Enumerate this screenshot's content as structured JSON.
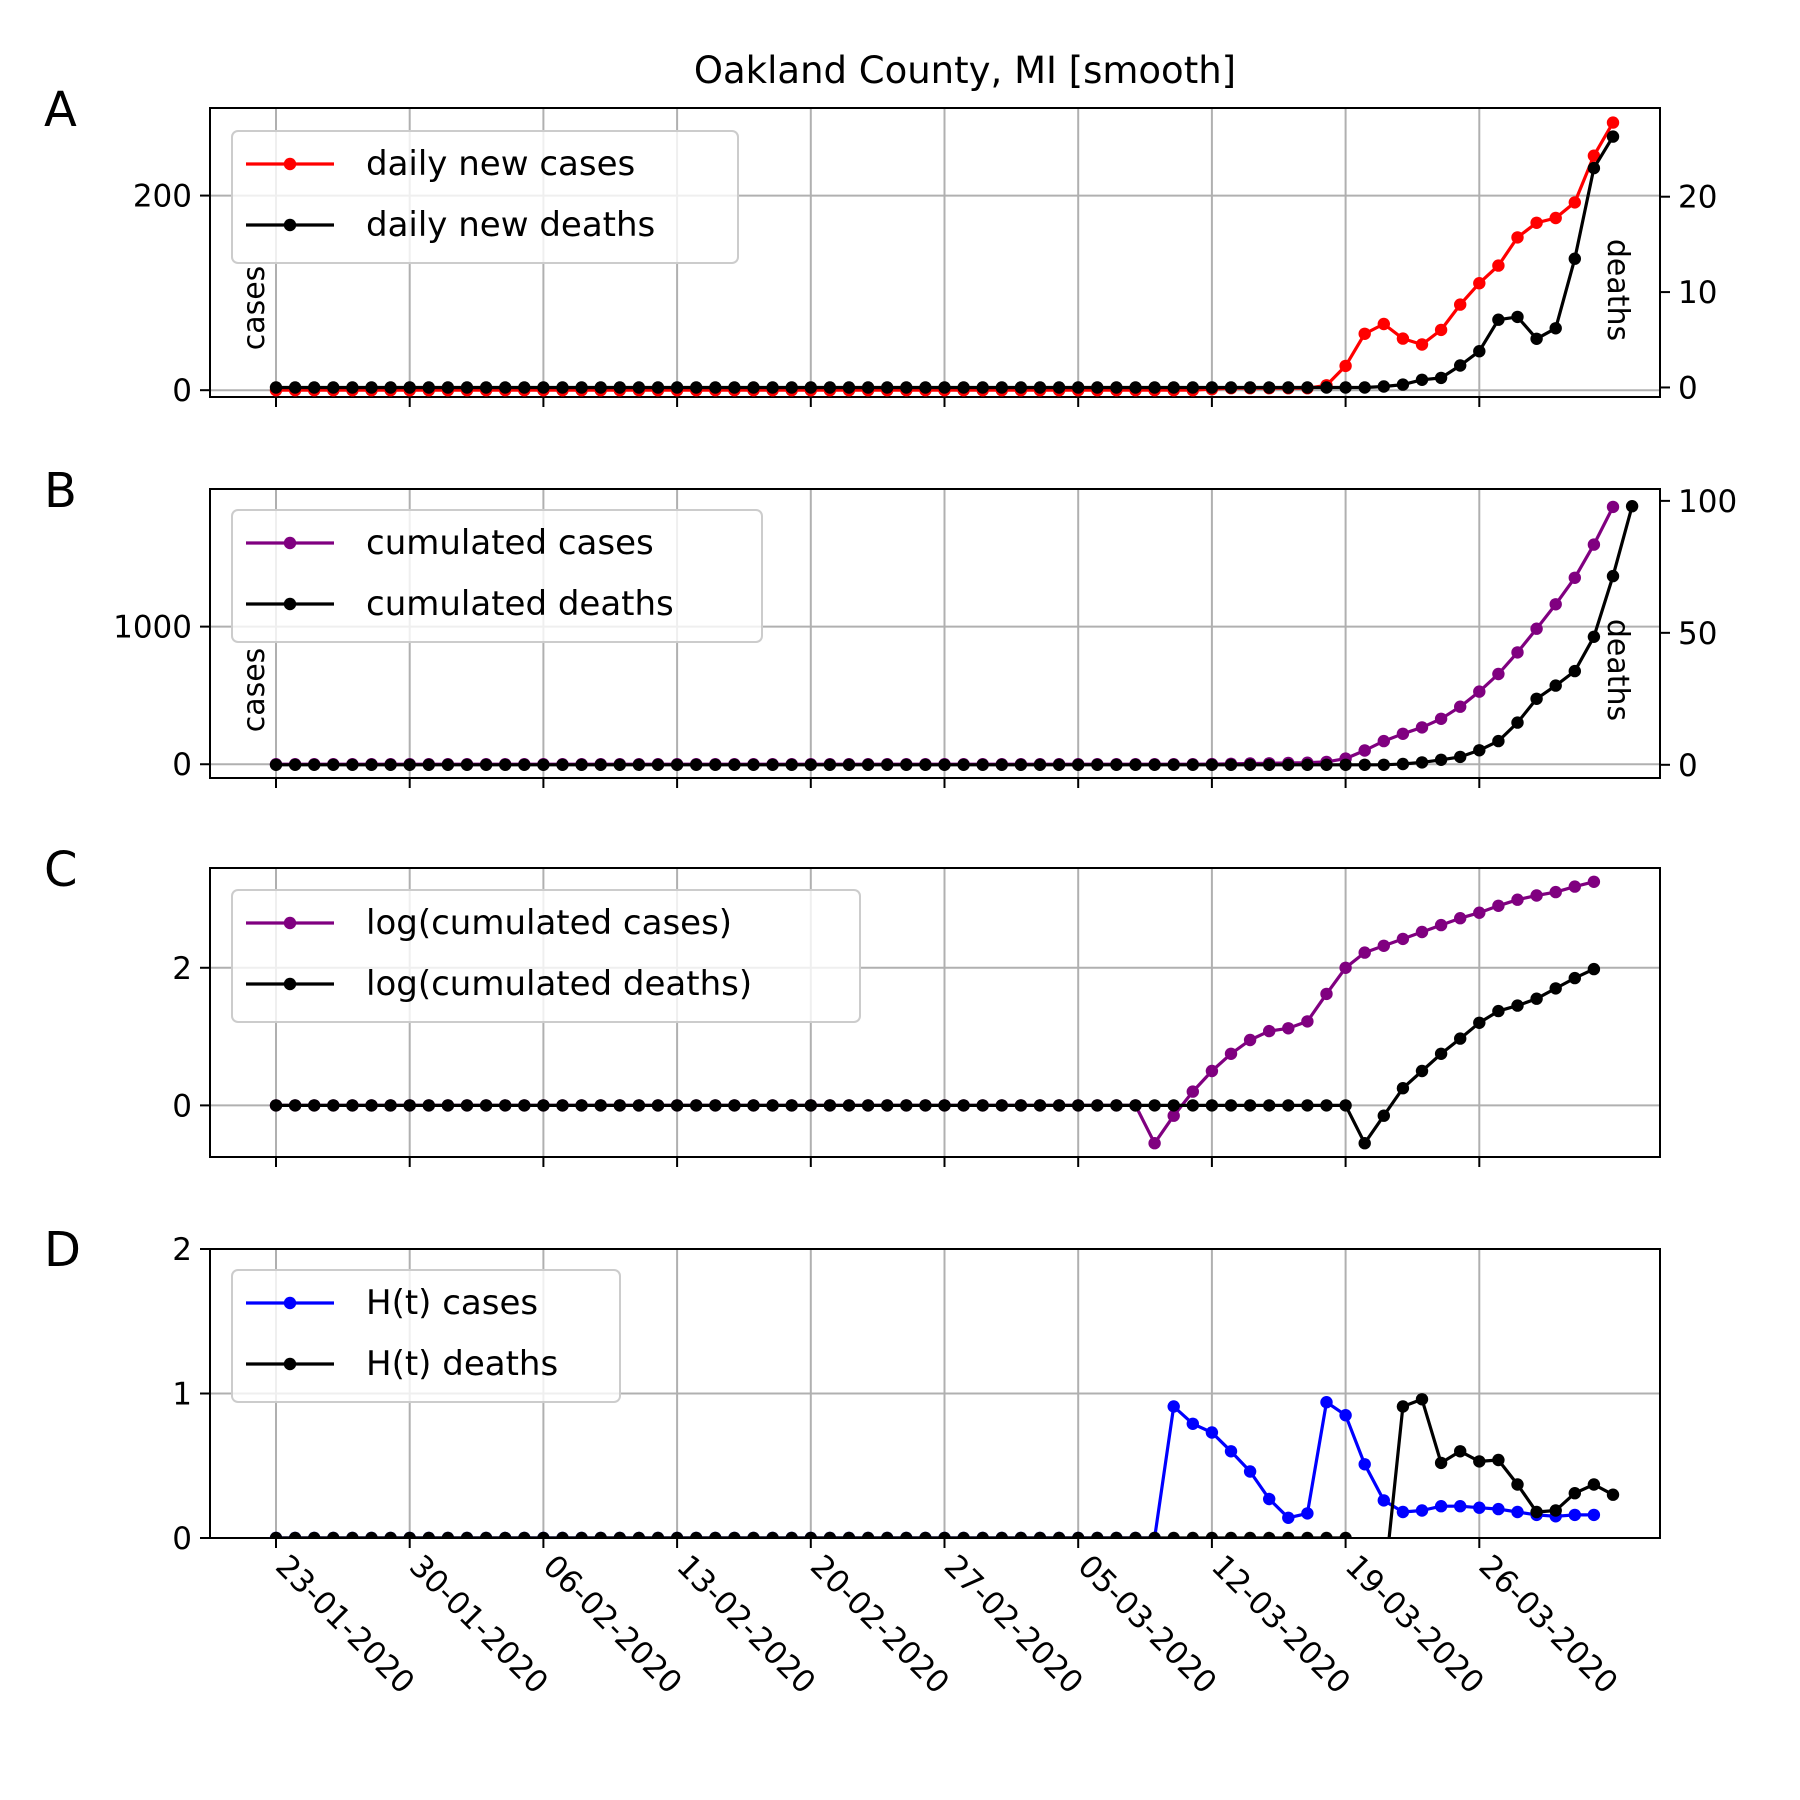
{
  "title": "Oakland County, MI [smooth]",
  "x_ticks": [
    "23-01-2020",
    "30-01-2020",
    "06-02-2020",
    "13-02-2020",
    "20-02-2020",
    "27-02-2020",
    "05-03-2020",
    "12-03-2020",
    "19-03-2020",
    "26-03-2020"
  ],
  "colors": {
    "cases": "#ff0000",
    "deaths": "#000000",
    "cumulated": "#800080",
    "ht_cases": "#0000ff"
  },
  "chart_data": [
    {
      "panel": "A",
      "type": "line",
      "x_start": "23-01-2020",
      "x_end": "31-03-2020",
      "ylabel": "cases",
      "ylabel_right": "deaths",
      "ylim": [
        -7,
        290
      ],
      "ylim_right": [
        -1.0,
        29.3
      ],
      "yticks": [
        0,
        200
      ],
      "yticks_right": [
        0,
        10,
        20
      ],
      "grid": true,
      "legend_position": "top-left",
      "series": [
        {
          "name": "daily new cases",
          "axis": "left",
          "color": "#ff0000",
          "values": [
            0,
            0,
            0,
            0,
            0,
            0,
            0,
            0,
            0,
            0,
            0,
            0,
            0,
            0,
            0,
            0,
            0,
            0,
            0,
            0,
            0,
            0,
            0,
            0,
            0,
            0,
            0,
            0,
            0,
            0,
            0,
            0,
            0,
            0,
            0,
            0,
            0,
            0,
            0,
            0,
            0,
            0,
            0,
            0,
            0,
            0,
            0,
            0,
            0,
            1,
            2,
            2,
            2,
            2,
            2,
            5,
            25,
            58,
            68,
            53,
            47,
            62,
            88,
            110,
            128,
            157,
            172,
            177,
            193,
            241,
            275
          ]
        },
        {
          "name": "daily new deaths",
          "axis": "right",
          "color": "#000000",
          "values": [
            0,
            0,
            0,
            0,
            0,
            0,
            0,
            0,
            0,
            0,
            0,
            0,
            0,
            0,
            0,
            0,
            0,
            0,
            0,
            0,
            0,
            0,
            0,
            0,
            0,
            0,
            0,
            0,
            0,
            0,
            0,
            0,
            0,
            0,
            0,
            0,
            0,
            0,
            0,
            0,
            0,
            0,
            0,
            0,
            0,
            0,
            0,
            0,
            0,
            0,
            0,
            0,
            0,
            0,
            0,
            0,
            0,
            0,
            0.1,
            0.3,
            0.8,
            1.0,
            2.3,
            3.8,
            7.1,
            7.4,
            5.1,
            6.2,
            13.5,
            23.0,
            26.3
          ]
        }
      ]
    },
    {
      "panel": "B",
      "type": "line",
      "x_start": "23-01-2020",
      "x_end": "31-03-2020",
      "ylabel": "cases",
      "ylabel_right": "deaths",
      "ylim": [
        -100,
        2000
      ],
      "ylim_right": [
        -5,
        104.5
      ],
      "yticks": [
        0,
        1000
      ],
      "yticks_right": [
        0,
        50,
        100
      ],
      "grid": true,
      "legend_position": "top-left",
      "series": [
        {
          "name": "cumulated cases",
          "axis": "left",
          "color": "#800080",
          "values": [
            0,
            0,
            0,
            0,
            0,
            0,
            0,
            0,
            0,
            0,
            0,
            0,
            0,
            0,
            0,
            0,
            0,
            0,
            0,
            0,
            0,
            0,
            0,
            0,
            0,
            0,
            0,
            0,
            0,
            0,
            0,
            0,
            0,
            0,
            0,
            0,
            0,
            0,
            0,
            0,
            0,
            0,
            0,
            0,
            0,
            0,
            0,
            0,
            0,
            1,
            3,
            5,
            7,
            9,
            11,
            17,
            41,
            100,
            168,
            221,
            268,
            330,
            418,
            528,
            656,
            813,
            985,
            1162,
            1355,
            1596,
            1870
          ]
        },
        {
          "name": "cumulated deaths",
          "axis": "right",
          "color": "#000000",
          "values": [
            0,
            0,
            0,
            0,
            0,
            0,
            0,
            0,
            0,
            0,
            0,
            0,
            0,
            0,
            0,
            0,
            0,
            0,
            0,
            0,
            0,
            0,
            0,
            0,
            0,
            0,
            0,
            0,
            0,
            0,
            0,
            0,
            0,
            0,
            0,
            0,
            0,
            0,
            0,
            0,
            0,
            0,
            0,
            0,
            0,
            0,
            0,
            0,
            0,
            0,
            0,
            0,
            0,
            0,
            0,
            0,
            0,
            0,
            0,
            0.3,
            0.9,
            1.9,
            3,
            5.5,
            9,
            16,
            25,
            30,
            35.5,
            48.5,
            71.5,
            98
          ]
        }
      ]
    },
    {
      "panel": "C",
      "type": "line",
      "x_start": "23-01-2020",
      "x_end": "31-03-2020",
      "ylim": [
        -0.75,
        3.45
      ],
      "yticks": [
        0,
        2
      ],
      "grid": true,
      "legend_position": "top-left",
      "series": [
        {
          "name": "log(cumulated cases)",
          "color": "#800080",
          "values": [
            0,
            0,
            0,
            0,
            0,
            0,
            0,
            0,
            0,
            0,
            0,
            0,
            0,
            0,
            0,
            0,
            0,
            0,
            0,
            0,
            0,
            0,
            0,
            0,
            0,
            0,
            0,
            0,
            0,
            0,
            0,
            0,
            0,
            0,
            0,
            0,
            0,
            0,
            0,
            0,
            0,
            0,
            0,
            0,
            0,
            0,
            -0.55,
            -0.15,
            0.2,
            0.5,
            0.75,
            0.95,
            1.08,
            1.12,
            1.22,
            1.62,
            2.0,
            2.22,
            2.32,
            2.42,
            2.52,
            2.62,
            2.72,
            2.8,
            2.9,
            2.99,
            3.05,
            3.1,
            3.18,
            3.25
          ]
        },
        {
          "name": "log(cumulated deaths)",
          "color": "#000000",
          "values": [
            0,
            0,
            0,
            0,
            0,
            0,
            0,
            0,
            0,
            0,
            0,
            0,
            0,
            0,
            0,
            0,
            0,
            0,
            0,
            0,
            0,
            0,
            0,
            0,
            0,
            0,
            0,
            0,
            0,
            0,
            0,
            0,
            0,
            0,
            0,
            0,
            0,
            0,
            0,
            0,
            0,
            0,
            0,
            0,
            0,
            0,
            0,
            0,
            0,
            0,
            0,
            0,
            0,
            0,
            0,
            0,
            0,
            -0.55,
            -0.15,
            0.25,
            0.5,
            0.75,
            0.97,
            1.2,
            1.37,
            1.45,
            1.55,
            1.7,
            1.85,
            1.98
          ]
        }
      ]
    },
    {
      "panel": "D",
      "type": "line",
      "x_start": "23-01-2020",
      "x_end": "31-03-2020",
      "ylim": [
        0,
        2
      ],
      "yticks": [
        0,
        1,
        2
      ],
      "grid": true,
      "legend_position": "top-left",
      "series": [
        {
          "name": "H(t) cases",
          "color": "#0000ff",
          "values": [
            0,
            0,
            0,
            0,
            0,
            0,
            0,
            0,
            0,
            0,
            0,
            0,
            0,
            0,
            0,
            0,
            0,
            0,
            0,
            0,
            0,
            0,
            0,
            0,
            0,
            0,
            0,
            0,
            0,
            0,
            0,
            0,
            0,
            0,
            0,
            0,
            0,
            0,
            0,
            0,
            0,
            0,
            0,
            0,
            0,
            0,
            0,
            0.91,
            0.79,
            0.73,
            0.6,
            0.46,
            0.27,
            0.14,
            0.17,
            0.94,
            0.85,
            0.51,
            0.26,
            0.18,
            0.19,
            0.22,
            0.22,
            0.21,
            0.2,
            0.18,
            0.16,
            0.15,
            0.16,
            0.16
          ]
        },
        {
          "name": "H(t) deaths",
          "color": "#000000",
          "values": [
            0,
            0,
            0,
            0,
            0,
            0,
            0,
            0,
            0,
            0,
            0,
            0,
            0,
            0,
            0,
            0,
            0,
            0,
            0,
            0,
            0,
            0,
            0,
            0,
            0,
            0,
            0,
            0,
            0,
            0,
            0,
            0,
            0,
            0,
            0,
            0,
            0,
            0,
            0,
            0,
            0,
            0,
            0,
            0,
            0,
            0,
            0,
            0,
            0,
            0,
            0,
            0,
            0,
            0,
            0,
            0,
            0,
            null,
            -0.35,
            0.91,
            0.96,
            0.52,
            0.6,
            0.53,
            0.54,
            0.37,
            0.18,
            0.19,
            0.31,
            0.37,
            0.3
          ]
        }
      ]
    }
  ]
}
